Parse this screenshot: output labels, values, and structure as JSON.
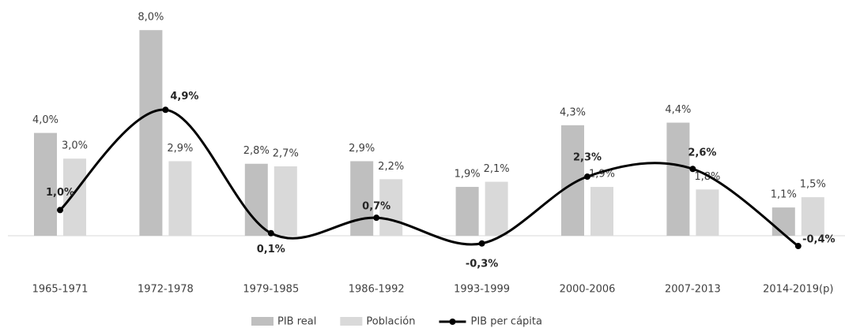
{
  "chart_data": {
    "type": "bar-line",
    "categories": [
      "1965-1971",
      "1972-1978",
      "1979-1985",
      "1986-1992",
      "1993-1999",
      "2000-2006",
      "2007-2013",
      "2014-2019(p)"
    ],
    "series": [
      {
        "name": "PIB real",
        "type": "bar",
        "color": "#bfbfbf",
        "values": [
          4.0,
          8.0,
          2.8,
          2.9,
          1.9,
          4.3,
          4.4,
          1.1
        ],
        "value_labels": [
          "4,0%",
          "8,0%",
          "2,8%",
          "2,9%",
          "1,9%",
          "4,3%",
          "4,4%",
          "1,1%"
        ]
      },
      {
        "name": "Población",
        "type": "bar",
        "color": "#d9d9d9",
        "values": [
          3.0,
          2.9,
          2.7,
          2.2,
          2.1,
          1.9,
          1.8,
          1.5
        ],
        "value_labels": [
          "3,0%",
          "2,9%",
          "2,7%",
          "2,2%",
          "2,1%",
          "1,9%",
          "1,8%",
          "1,5%"
        ]
      },
      {
        "name": "PIB per cápita",
        "type": "line",
        "color": "#000000",
        "values": [
          1.0,
          4.9,
          0.1,
          0.7,
          -0.3,
          2.3,
          2.6,
          -0.4
        ],
        "value_labels": [
          "1,0%",
          "4,9%",
          "0,1%",
          "0,7%",
          "-0,3%",
          "2,3%",
          "2,6%",
          "-0,4%"
        ]
      }
    ]
  }
}
